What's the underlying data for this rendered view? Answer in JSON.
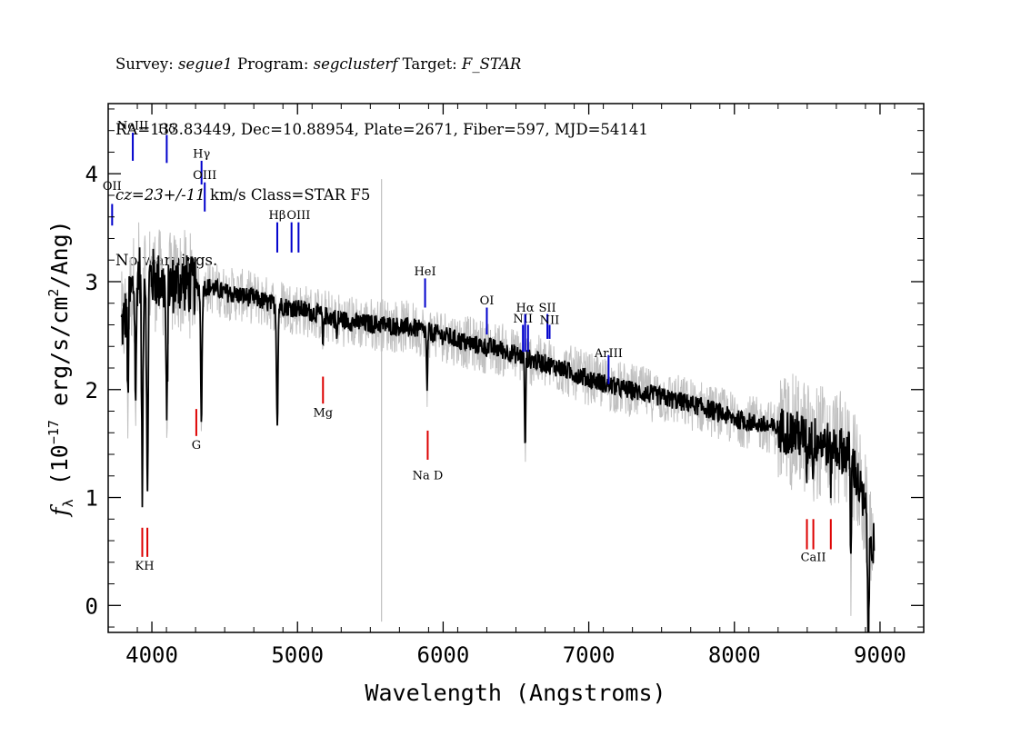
{
  "header": {
    "line1": {
      "survey_label": "Survey: ",
      "survey": "segue1",
      "program_label": " Program: ",
      "program": "segclusterf",
      "target_label": " Target: ",
      "target": "F_STAR"
    },
    "line2": "RA=133.83449, Dec=10.88954, Plate=2671, Fiber=597, MJD=54141",
    "line3": {
      "cz": "cz=23+/-11",
      "rest": " km/s Class=STAR F5"
    },
    "line4": "No warnings."
  },
  "chart_data": {
    "type": "line",
    "xlabel": "Wavelength (Angstroms)",
    "ylabel": {
      "f": "f",
      "sub": "λ",
      "open": " (10",
      "exp1": "−17",
      "mid": " erg/s/cm",
      "exp2": "2",
      "close": "/Ang)"
    },
    "xlim": [
      3700,
      9300
    ],
    "ylim": [
      -0.25,
      4.65
    ],
    "xticks": [
      4000,
      5000,
      6000,
      7000,
      8000,
      9000
    ],
    "yticks": [
      0,
      1,
      2,
      3,
      4
    ],
    "x_minor_step": 200,
    "y_minor_step": 0.2,
    "colors": {
      "flux": "#000000",
      "error": "#c0c0c0",
      "emission": "#0000cc",
      "absorption": "#dd0000"
    },
    "flux_envelope": [
      [
        3800,
        2.6
      ],
      [
        3900,
        3.1
      ],
      [
        4000,
        3.05
      ],
      [
        4100,
        2.95
      ],
      [
        4200,
        3.0
      ],
      [
        4300,
        2.95
      ],
      [
        4400,
        2.95
      ],
      [
        4500,
        2.9
      ],
      [
        4700,
        2.85
      ],
      [
        4800,
        2.8
      ],
      [
        5000,
        2.75
      ],
      [
        5200,
        2.68
      ],
      [
        5400,
        2.62
      ],
      [
        5600,
        2.6
      ],
      [
        5800,
        2.57
      ],
      [
        6000,
        2.5
      ],
      [
        6200,
        2.42
      ],
      [
        6400,
        2.37
      ],
      [
        6600,
        2.28
      ],
      [
        6800,
        2.2
      ],
      [
        7000,
        2.1
      ],
      [
        7200,
        2.02
      ],
      [
        7400,
        1.96
      ],
      [
        7600,
        1.9
      ],
      [
        7800,
        1.83
      ],
      [
        8000,
        1.73
      ],
      [
        8200,
        1.67
      ],
      [
        8400,
        1.6
      ],
      [
        8600,
        1.52
      ],
      [
        8800,
        1.4
      ],
      [
        8950,
        0.6
      ]
    ],
    "absorption_features": [
      {
        "x": 3835,
        "depth": 0.9
      },
      {
        "x": 3889,
        "depth": 1.1
      },
      {
        "x": 3934,
        "depth": 2.0
      },
      {
        "x": 3969,
        "depth": 2.1
      },
      {
        "x": 4102,
        "depth": 1.3
      },
      {
        "x": 4340,
        "depth": 1.2
      },
      {
        "x": 4861,
        "depth": 1.1
      },
      {
        "x": 5175,
        "depth": 0.3
      },
      {
        "x": 5270,
        "depth": 0.2
      },
      {
        "x": 5890,
        "depth": 0.6
      },
      {
        "x": 6563,
        "depth": 0.9
      },
      {
        "x": 8498,
        "depth": 0.3
      },
      {
        "x": 8542,
        "depth": 0.3
      },
      {
        "x": 8662,
        "depth": 0.3
      },
      {
        "x": 8800,
        "depth": 1.0
      },
      {
        "x": 8920,
        "depth": 1.2
      }
    ],
    "skyline": {
      "x": 5577,
      "y": [
        -0.15,
        3.95
      ]
    },
    "emission_lines": [
      {
        "label": "OII",
        "x": 3727,
        "label_y": 3.85,
        "y": [
          3.52,
          3.72
        ]
      },
      {
        "label": "NeIII",
        "x": 3869,
        "label_y": 4.41,
        "y": [
          4.12,
          4.38
        ]
      },
      {
        "label": "Hδ",
        "x": 4102,
        "label_y": 4.38,
        "y": [
          4.1,
          4.36
        ]
      },
      {
        "label": "Hγ",
        "x": 4341,
        "label_y": 4.15,
        "y": [
          3.9,
          4.12
        ]
      },
      {
        "label": "OIII",
        "x": 4363,
        "label_y": 3.95,
        "y": [
          3.65,
          3.92
        ]
      },
      {
        "label": "Hβ",
        "x": 4861,
        "label_y": 3.58,
        "y": [
          3.27,
          3.55
        ]
      },
      {
        "label": "OIII",
        "x": 5007,
        "label_y": 3.58,
        "y": [
          3.27,
          3.55
        ]
      },
      {
        "label": "",
        "x": 4959,
        "label_y": null,
        "y": [
          3.27,
          3.55
        ]
      },
      {
        "label": "HeI",
        "x": 5876,
        "label_y": 3.06,
        "y": [
          2.76,
          3.03
        ]
      },
      {
        "label": "OI",
        "x": 6300,
        "label_y": 2.79,
        "y": [
          2.51,
          2.76
        ]
      },
      {
        "label": "NII",
        "x": 6548,
        "label_y": 2.62,
        "y": [
          2.35,
          2.6
        ]
      },
      {
        "label": "Hα",
        "x": 6563,
        "label_y": 2.72,
        "y": [
          2.35,
          2.7
        ]
      },
      {
        "label": "NII",
        "x": 6583,
        "label_y": null,
        "y": [
          2.35,
          2.6
        ]
      },
      {
        "label": "SII",
        "x": 6716,
        "label_y": 2.72,
        "y": [
          2.47,
          2.7
        ]
      },
      {
        "label": "NII",
        "x": 6731,
        "label_y": 2.61,
        "y": [
          2.47,
          2.6
        ]
      },
      {
        "label": "ArIII",
        "x": 7136,
        "label_y": 2.3,
        "y": [
          2.05,
          2.32
        ]
      }
    ],
    "absorption_lines": [
      {
        "label": "KH",
        "x": 3950,
        "label_y": 0.33,
        "ticks": [
          3934,
          3969
        ],
        "y": [
          0.45,
          0.72
        ]
      },
      {
        "label": "G",
        "x": 4305,
        "label_y": 1.45,
        "ticks": [
          4305
        ],
        "y": [
          1.57,
          1.82
        ]
      },
      {
        "label": "Mg",
        "x": 5175,
        "label_y": 1.75,
        "ticks": [
          5175
        ],
        "y": [
          1.87,
          2.12
        ]
      },
      {
        "label": "Na D",
        "x": 5894,
        "label_y": 1.17,
        "ticks": [
          5894
        ],
        "y": [
          1.35,
          1.62
        ]
      },
      {
        "label": "CaII",
        "x": 8542,
        "label_y": 0.41,
        "ticks": [
          8498,
          8542,
          8662
        ],
        "y": [
          0.52,
          0.8
        ]
      }
    ]
  }
}
